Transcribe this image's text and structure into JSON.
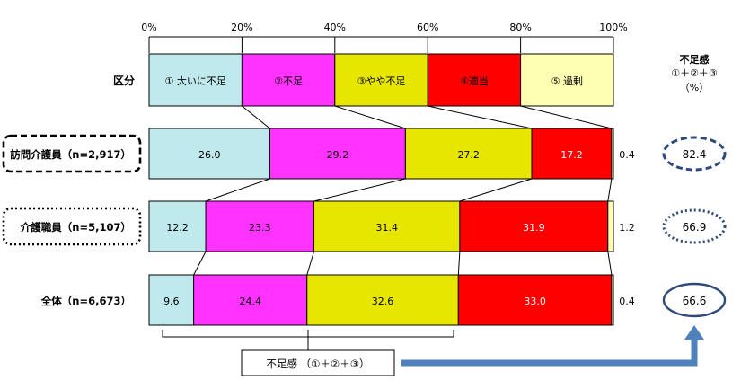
{
  "chart_data": {
    "type": "bar",
    "stacked": true,
    "orientation": "horizontal",
    "xlim": [
      0,
      100
    ],
    "x_ticks": [
      "0%",
      "20%",
      "40%",
      "60%",
      "80%",
      "100%"
    ],
    "legend_row": {
      "label": "区分",
      "segments": [
        {
          "label": "① 大いに不足",
          "value": 20
        },
        {
          "label": "②不足",
          "value": 20
        },
        {
          "label": "③やや不足",
          "value": 20
        },
        {
          "label": "④適当",
          "value": 20
        },
        {
          "label": "⑤ 過剰",
          "value": 20
        }
      ]
    },
    "categories": [
      "訪問介護員（n=2,917）",
      "介護職員（n=5,107）",
      "全体（n=6,673）"
    ],
    "series": [
      {
        "name": "① 大いに不足",
        "values": [
          26.0,
          12.2,
          9.6
        ],
        "color": "#bfe9ec"
      },
      {
        "name": "②不足",
        "values": [
          29.2,
          23.3,
          24.4
        ],
        "color": "#ff33ff"
      },
      {
        "name": "③やや不足",
        "values": [
          27.2,
          31.4,
          32.6
        ],
        "color": "#e6e600"
      },
      {
        "name": "④適当",
        "values": [
          17.2,
          31.9,
          33.0
        ],
        "color": "#ff0000"
      },
      {
        "name": "⑤ 過剰",
        "values": [
          0.4,
          1.2,
          0.4
        ],
        "color": "#ffffb3"
      }
    ],
    "value_labels": [
      [
        "26.0",
        "29.2",
        "27.2",
        "17.2",
        "0.4"
      ],
      [
        "12.2",
        "23.3",
        "31.4",
        "31.9",
        "1.2"
      ],
      [
        "9.6",
        "24.4",
        "32.6",
        "33.0",
        "0.4"
      ]
    ],
    "shortage_header": {
      "line1": "不足感",
      "line2": "①＋②＋③",
      "line3": "（%）"
    },
    "shortage_totals": [
      "82.4",
      "66.9",
      "66.6"
    ],
    "shortage_styles": [
      "dashed",
      "dotted",
      "solid"
    ],
    "row_box_styles": [
      "dashed",
      "dotted",
      "none"
    ],
    "bracket_label": "不足感 （①＋②＋③）",
    "arrow_color": "#4f81bd",
    "ellipse_color": "#2f4a7a"
  }
}
